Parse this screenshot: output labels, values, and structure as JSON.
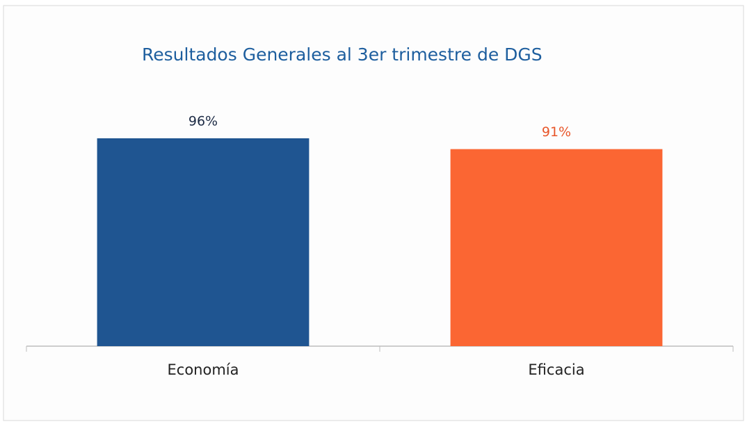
{
  "chart_data": {
    "type": "bar",
    "title": "Resultados Generales al 3er trimestre de DGS",
    "categories": [
      "Economía",
      "Eficacia"
    ],
    "values": [
      96,
      91
    ],
    "value_labels": [
      "96%",
      "91%"
    ],
    "colors": [
      "#1f5591",
      "#fb6633"
    ],
    "value_label_colors": [
      "#1c2a44",
      "#e8562a"
    ]
  }
}
